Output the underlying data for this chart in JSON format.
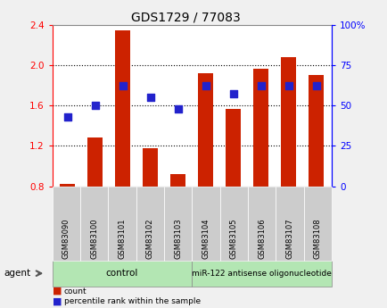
{
  "title": "GDS1729 / 77083",
  "categories": [
    "GSM83090",
    "GSM83100",
    "GSM83101",
    "GSM83102",
    "GSM83103",
    "GSM83104",
    "GSM83105",
    "GSM83106",
    "GSM83107",
    "GSM83108"
  ],
  "bar_values": [
    0.82,
    1.28,
    2.34,
    1.18,
    0.92,
    1.92,
    1.57,
    1.96,
    2.08,
    1.9
  ],
  "dot_values_pct": [
    43,
    50,
    62,
    55,
    48,
    62,
    57,
    62,
    62,
    62
  ],
  "ylim_left": [
    0.8,
    2.4
  ],
  "ylim_right": [
    0,
    100
  ],
  "yticks_left": [
    0.8,
    1.2,
    1.6,
    2.0,
    2.4
  ],
  "yticks_right": [
    0,
    25,
    50,
    75,
    100
  ],
  "ytick_labels_right": [
    "0",
    "25",
    "50",
    "75",
    "100%"
  ],
  "bar_color": "#cc2200",
  "dot_color": "#2222cc",
  "n_control": 5,
  "control_label": "control",
  "treatment_label": "miR-122 antisense oligonucleotide",
  "agent_label": "agent",
  "legend_bar_label": "count",
  "legend_dot_label": "percentile rank within the sample",
  "group_bg_color": "#b3e6b3",
  "tick_label_bg": "#cccccc",
  "plot_bg": "#ffffff",
  "outer_bg": "#f0f0f0"
}
